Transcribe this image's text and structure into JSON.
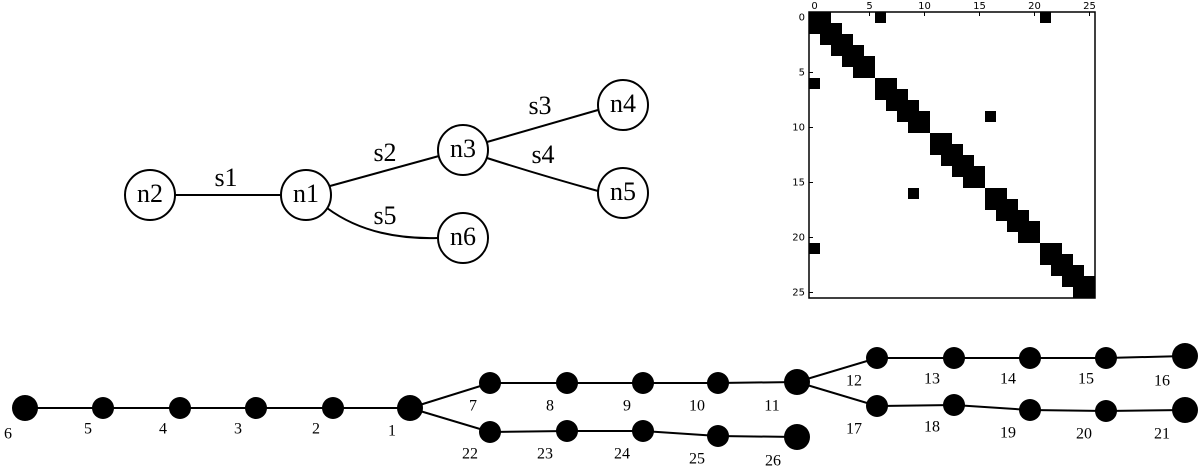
{
  "tree": {
    "nodes": [
      "n1",
      "n2",
      "n3",
      "n4",
      "n5",
      "n6"
    ],
    "edges": [
      "s1",
      "s2",
      "s3",
      "s4",
      "s5"
    ]
  },
  "matrix": {
    "xticks": [
      0,
      5,
      10,
      15,
      20,
      25
    ],
    "yticks": [
      0,
      5,
      10,
      15,
      20,
      25
    ],
    "lim": [
      -0.5,
      25.5
    ],
    "rows": [
      [
        0,
        1,
        6,
        21
      ],
      [
        0,
        1,
        2
      ],
      [
        1,
        2,
        3
      ],
      [
        2,
        3,
        4
      ],
      [
        3,
        4,
        5
      ],
      [
        4,
        5
      ],
      [
        0,
        6,
        7
      ],
      [
        6,
        7,
        8
      ],
      [
        7,
        8,
        9
      ],
      [
        8,
        9,
        10,
        16
      ],
      [
        9,
        10
      ],
      [
        11,
        12
      ],
      [
        11,
        12,
        13
      ],
      [
        12,
        13,
        14
      ],
      [
        13,
        14,
        15
      ],
      [
        14,
        15
      ],
      [
        9,
        16,
        17
      ],
      [
        16,
        17,
        18
      ],
      [
        17,
        18,
        19
      ],
      [
        18,
        19,
        20
      ],
      [
        19,
        20
      ],
      [
        0,
        21,
        22
      ],
      [
        21,
        22,
        23
      ],
      [
        22,
        23,
        24
      ],
      [
        23,
        24,
        25
      ],
      [
        24,
        25
      ]
    ]
  },
  "graph": {
    "nodes": [
      "1",
      "2",
      "3",
      "4",
      "5",
      "6",
      "7",
      "8",
      "9",
      "10",
      "11",
      "12",
      "13",
      "14",
      "15",
      "16",
      "17",
      "18",
      "19",
      "20",
      "21",
      "22",
      "23",
      "24",
      "25",
      "26"
    ]
  }
}
